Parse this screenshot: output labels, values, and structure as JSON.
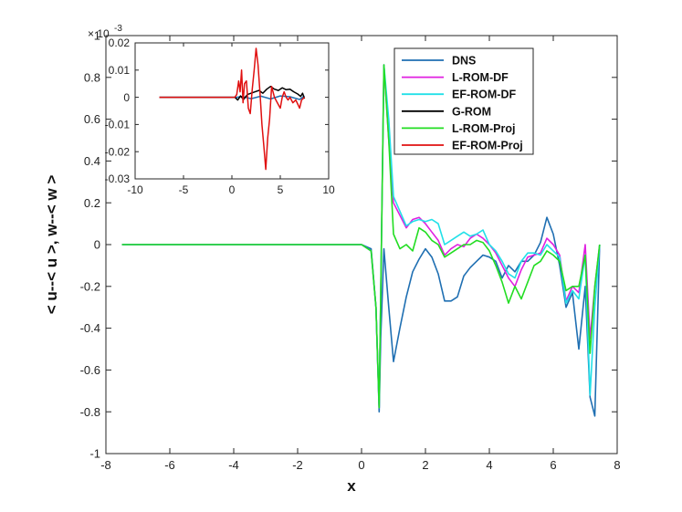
{
  "chart_data": [
    {
      "type": "line",
      "xlabel": "x",
      "ylabel": "< u--< u >, w--< w >",
      "xlim": [
        -8,
        8
      ],
      "ylim": [
        -1,
        1
      ],
      "xticks": [
        "-8",
        "-6",
        "-4",
        "-2",
        "0",
        "2",
        "4",
        "6",
        "8"
      ],
      "yticks": [
        "-1",
        "-0.8",
        "-0.6",
        "-0.4",
        "-0.2",
        "0",
        "0.2",
        "0.4",
        "0.6",
        "0.8",
        "1"
      ],
      "y_scale_note": "× 10^-3",
      "grid": false,
      "legend": "top-right",
      "series": [
        {
          "name": "DNS",
          "color": "#1f6fb2",
          "x": [
            -7.5,
            0,
            0.3,
            0.45,
            0.55,
            0.6,
            0.7,
            0.85,
            1.0,
            1.2,
            1.4,
            1.6,
            1.8,
            2.0,
            2.2,
            2.4,
            2.6,
            2.8,
            3.0,
            3.2,
            3.4,
            3.6,
            3.8,
            4.0,
            4.2,
            4.4,
            4.6,
            4.8,
            5.0,
            5.2,
            5.4,
            5.6,
            5.8,
            6.0,
            6.2,
            6.4,
            6.6,
            6.8,
            7.0,
            7.15,
            7.3,
            7.45
          ],
          "y": [
            0,
            0,
            -0.02,
            -0.3,
            -0.8,
            -0.45,
            -0.02,
            -0.3,
            -0.56,
            -0.4,
            -0.25,
            -0.13,
            -0.07,
            -0.02,
            -0.06,
            -0.14,
            -0.27,
            -0.27,
            -0.25,
            -0.15,
            -0.11,
            -0.08,
            -0.05,
            -0.06,
            -0.08,
            -0.16,
            -0.1,
            -0.13,
            -0.08,
            -0.08,
            -0.05,
            0.01,
            0.13,
            0.05,
            -0.1,
            -0.3,
            -0.23,
            -0.5,
            -0.2,
            -0.73,
            -0.82,
            0.0
          ]
        },
        {
          "name": "L-ROM-DF",
          "color": "#e020e0",
          "x": [
            -7.5,
            0,
            0.3,
            0.45,
            0.55,
            0.7,
            0.85,
            1.0,
            1.2,
            1.4,
            1.6,
            1.8,
            2.0,
            2.2,
            2.4,
            2.6,
            2.8,
            3.0,
            3.2,
            3.4,
            3.6,
            3.8,
            4.0,
            4.2,
            4.4,
            4.6,
            4.8,
            5.0,
            5.2,
            5.4,
            5.6,
            5.8,
            6.0,
            6.2,
            6.4,
            6.6,
            6.8,
            7.0,
            7.15,
            7.3,
            7.45
          ],
          "y": [
            0,
            0,
            -0.03,
            -0.3,
            -0.78,
            0.86,
            0.5,
            0.2,
            0.14,
            0.08,
            0.12,
            0.13,
            0.1,
            0.06,
            0.02,
            -0.05,
            -0.02,
            0.0,
            -0.01,
            0.03,
            0.05,
            0.03,
            0.0,
            -0.04,
            -0.1,
            -0.16,
            -0.2,
            -0.12,
            -0.06,
            -0.05,
            -0.04,
            0.03,
            0.0,
            -0.05,
            -0.27,
            -0.2,
            -0.23,
            0.0,
            -0.45,
            -0.2,
            0.0
          ]
        },
        {
          "name": "EF-ROM-DF",
          "color": "#22e0e8",
          "x": [
            -7.5,
            0,
            0.3,
            0.45,
            0.55,
            0.7,
            0.85,
            1.0,
            1.2,
            1.4,
            1.6,
            1.8,
            2.0,
            2.2,
            2.4,
            2.6,
            2.8,
            3.0,
            3.2,
            3.4,
            3.6,
            3.8,
            4.0,
            4.2,
            4.4,
            4.6,
            4.8,
            5.0,
            5.2,
            5.4,
            5.6,
            5.8,
            6.0,
            6.2,
            6.4,
            6.6,
            6.8,
            7.0,
            7.15,
            7.3,
            7.45
          ],
          "y": [
            0,
            0,
            -0.03,
            -0.3,
            -0.78,
            0.86,
            0.6,
            0.23,
            0.16,
            0.09,
            0.11,
            0.12,
            0.11,
            0.12,
            0.1,
            0.0,
            0.02,
            0.04,
            0.06,
            0.04,
            0.05,
            0.07,
            0.0,
            -0.03,
            -0.08,
            -0.14,
            -0.16,
            -0.08,
            -0.04,
            -0.04,
            -0.05,
            0.0,
            -0.03,
            -0.06,
            -0.28,
            -0.22,
            -0.26,
            -0.05,
            -0.72,
            -0.3,
            0.0
          ]
        },
        {
          "name": "G-ROM",
          "color": "#000000",
          "x": [],
          "y": []
        },
        {
          "name": "L-ROM-Proj",
          "color": "#22dd22",
          "x": [
            -7.5,
            0,
            0.3,
            0.45,
            0.55,
            0.7,
            0.85,
            1.0,
            1.2,
            1.4,
            1.6,
            1.8,
            2.0,
            2.2,
            2.4,
            2.6,
            2.8,
            3.0,
            3.2,
            3.4,
            3.6,
            3.8,
            4.0,
            4.2,
            4.4,
            4.6,
            4.8,
            5.0,
            5.2,
            5.4,
            5.6,
            5.8,
            6.0,
            6.2,
            6.4,
            6.6,
            6.8,
            7.0,
            7.15,
            7.3,
            7.45
          ],
          "y": [
            0,
            0,
            -0.03,
            -0.3,
            -0.78,
            0.86,
            0.5,
            0.05,
            -0.02,
            0.0,
            -0.03,
            0.08,
            0.06,
            0.02,
            0.0,
            -0.06,
            -0.04,
            -0.02,
            0.0,
            0.0,
            0.02,
            0.01,
            -0.03,
            -0.1,
            -0.18,
            -0.28,
            -0.2,
            -0.26,
            -0.18,
            -0.1,
            -0.08,
            -0.03,
            -0.05,
            -0.08,
            -0.22,
            -0.2,
            -0.2,
            -0.05,
            -0.52,
            -0.2,
            0.0
          ]
        },
        {
          "name": "EF-ROM-Proj",
          "color": "#e01010",
          "x": [],
          "y": []
        }
      ]
    },
    {
      "type": "line",
      "xlim": [
        -10,
        10
      ],
      "ylim": [
        -0.03,
        0.02
      ],
      "xticks": [
        "-10",
        "-5",
        "0",
        "5",
        "10"
      ],
      "yticks": [
        "-0.03",
        "-0.02",
        "-0.01",
        "0",
        "0.01",
        "0.02"
      ],
      "grid": false,
      "series": [
        {
          "color": "#1f6fb2",
          "x": [
            -7.5,
            0.5,
            1,
            2,
            3,
            4,
            5,
            6,
            7,
            7.5
          ],
          "y": [
            0,
            0,
            0.0003,
            -0.0005,
            0.0004,
            -0.0006,
            0.0005,
            0.0002,
            -0.0008,
            0.0005
          ]
        },
        {
          "color": "#000000",
          "x": [
            -7.5,
            0.3,
            0.6,
            0.9,
            1.2,
            1.6,
            2.0,
            2.4,
            2.8,
            3.2,
            3.6,
            4.0,
            4.4,
            4.8,
            5.2,
            5.6,
            6.0,
            6.4,
            6.8,
            7.1,
            7.3,
            7.5
          ],
          "y": [
            0,
            0,
            -0.001,
            0.0005,
            -0.0008,
            0.001,
            0.0015,
            0.002,
            0.0025,
            0.0015,
            0.003,
            0.004,
            0.003,
            0.0025,
            0.0035,
            0.0028,
            0.003,
            0.002,
            0.0012,
            0.0003,
            0.0015,
            -0.0005
          ]
        },
        {
          "color": "#e01010",
          "x": [
            -7.5,
            0.3,
            0.5,
            0.7,
            0.85,
            1.0,
            1.15,
            1.3,
            1.5,
            1.7,
            1.9,
            2.1,
            2.3,
            2.5,
            2.7,
            2.9,
            3.1,
            3.3,
            3.5,
            3.7,
            3.9,
            4.1,
            4.4,
            4.7,
            5.0,
            5.2,
            5.4,
            5.6,
            5.8,
            6.0,
            6.3,
            6.6,
            7.0,
            7.2,
            7.5
          ],
          "y": [
            0,
            0,
            0.001,
            0.006,
            0.002,
            0.01,
            -0.002,
            0.005,
            0.006,
            -0.004,
            -0.006,
            0.003,
            0.01,
            0.018,
            0.012,
            0.002,
            -0.01,
            -0.018,
            -0.0265,
            -0.015,
            -0.008,
            0.004,
            0.0,
            -0.002,
            -0.004,
            0.0,
            0.002,
            0.0,
            -0.001,
            0.0,
            -0.002,
            -0.001,
            -0.004,
            -0.001,
            0.0
          ]
        }
      ]
    }
  ]
}
